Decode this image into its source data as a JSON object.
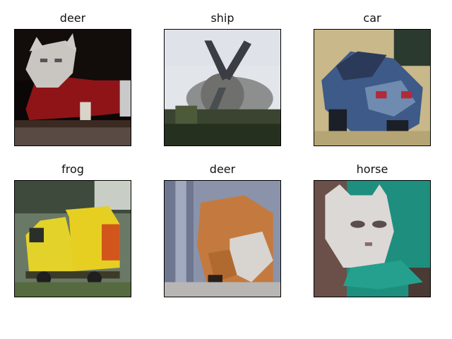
{
  "figure": {
    "panels": [
      {
        "title": "deer",
        "image": "cat-in-red-sweater"
      },
      {
        "title": "ship",
        "image": "propeller-airplane"
      },
      {
        "title": "car",
        "image": "blue-car"
      },
      {
        "title": "frog",
        "image": "yellow-truck"
      },
      {
        "title": "deer",
        "image": "orange-dog"
      },
      {
        "title": "horse",
        "image": "white-cat-on-teal"
      }
    ]
  }
}
